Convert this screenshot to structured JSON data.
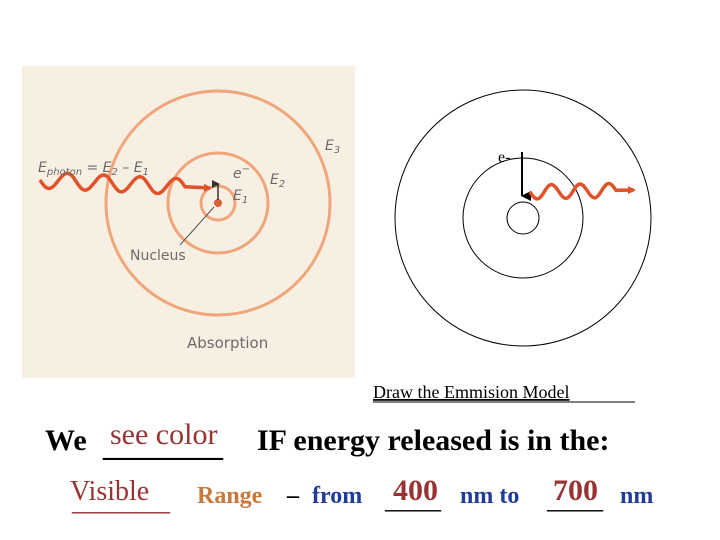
{
  "absorption": {
    "equation": [
      "E",
      "photon",
      " = E",
      "2",
      " – E",
      "1"
    ],
    "electron": {
      "base": "e",
      "sup": "−"
    },
    "levels": [
      {
        "base": "E",
        "sub": "1"
      },
      {
        "base": "E",
        "sub": "2"
      },
      {
        "base": "E",
        "sub": "3"
      }
    ],
    "nucleus": "Nucleus",
    "caption": "Absorption"
  },
  "emission": {
    "electron": "e-",
    "caption": "Draw the Emmision Model"
  },
  "sentence": {
    "start": "We",
    "blank": "________",
    "answer": "see color",
    "end": "IF energy released is in the:"
  },
  "range_line": {
    "answer": "Visible",
    "blank": "_______",
    "word": "Range",
    "dash": "–",
    "from": "from",
    "min_blank": "____",
    "min": 400,
    "to": "nm to",
    "max_blank": "____",
    "max": 700,
    "unit": "nm"
  }
}
